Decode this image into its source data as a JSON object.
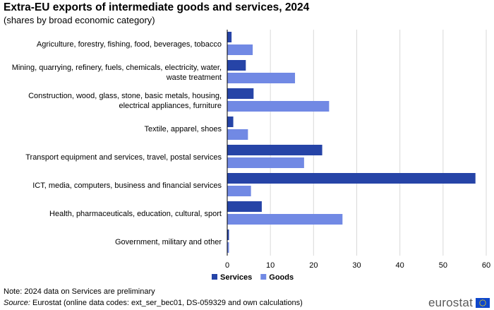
{
  "title": "Extra-EU exports of intermediate goods and services, 2024",
  "subtitle": "(shares by broad economic category)",
  "chart_data": {
    "type": "bar",
    "orientation": "horizontal",
    "categories": [
      [
        "Agriculture, forestry, fishing, food, beverages, tobacco"
      ],
      [
        "Mining, quarrying, refinery, fuels, chemicals, electricity, water,",
        "waste treatment"
      ],
      [
        "Construction, wood, glass, stone, basic metals, housing,",
        "electrical appliances, furniture"
      ],
      [
        "Textile, apparel, shoes"
      ],
      [
        "Transport equipment and services, travel, postal services"
      ],
      [
        "ICT, media, computers, business and financial services"
      ],
      [
        "Health, pharmaceuticals, education, cultural, sport"
      ],
      [
        "Government, military and other"
      ]
    ],
    "series": [
      {
        "name": "Services",
        "color": "#2644A7",
        "values": [
          1.0,
          4.3,
          6.1,
          1.4,
          22.0,
          57.5,
          8.0,
          0.4
        ]
      },
      {
        "name": "Goods",
        "color": "#7189E4",
        "values": [
          5.9,
          15.7,
          23.6,
          4.8,
          17.8,
          5.5,
          26.7,
          0.4
        ]
      }
    ],
    "xlim": [
      0,
      60
    ],
    "xticks": [
      0,
      10,
      20,
      30,
      40,
      50,
      60
    ],
    "grid": "vertical",
    "legend": "bottom-center"
  },
  "note": "Note: 2024 data on Services are preliminary",
  "source": {
    "prefix": "Source:",
    "text": " Eurostat (online data codes: ext_ser_bec01, DS-059329 and own calculations)"
  },
  "logo": {
    "text": "eurostat",
    "flag_color": "#0E47CB",
    "star_color": "#FFDD00"
  }
}
